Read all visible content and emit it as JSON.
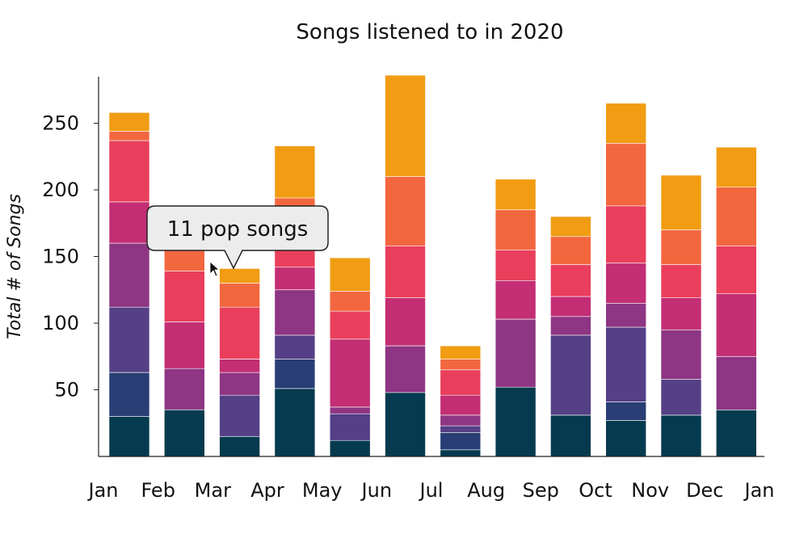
{
  "chart_data": {
    "type": "bar",
    "stacked": true,
    "title": "Songs listened to in 2020",
    "xlabel": "",
    "ylabel": "Total # of Songs",
    "ylim": [
      0,
      285
    ],
    "yticks": [
      50,
      100,
      150,
      200,
      250
    ],
    "x_tick_labels": [
      "Jan",
      "Feb",
      "Mar",
      "Apr",
      "May",
      "Jun",
      "Jul",
      "Aug",
      "Sep",
      "Oct",
      "Nov",
      "Dec",
      "Jan"
    ],
    "grid": false,
    "legend": "none",
    "categories": [
      "Jan",
      "Feb",
      "Mar",
      "Apr",
      "May",
      "Jun",
      "Jul",
      "Aug",
      "Sep",
      "Oct",
      "Nov",
      "Dec"
    ],
    "series": [
      {
        "color": "#063a4f",
        "values": [
          30,
          35,
          15,
          51,
          12,
          48,
          5,
          52,
          31,
          27,
          31,
          35
        ]
      },
      {
        "color": "#283e74",
        "values": [
          33,
          0,
          0,
          22,
          0,
          0,
          13,
          0,
          0,
          14,
          0,
          0
        ]
      },
      {
        "color": "#553f86",
        "values": [
          49,
          0,
          31,
          18,
          20,
          0,
          5,
          0,
          60,
          56,
          27,
          0
        ]
      },
      {
        "color": "#8e3583",
        "values": [
          48,
          31,
          17,
          34,
          5,
          35,
          8,
          51,
          14,
          18,
          37,
          40
        ]
      },
      {
        "color": "#c32e74",
        "values": [
          31,
          35,
          10,
          17,
          51,
          36,
          15,
          29,
          15,
          30,
          24,
          47
        ]
      },
      {
        "color": "#e93f5c",
        "values": [
          46,
          38,
          39,
          13,
          21,
          39,
          19,
          23,
          24,
          43,
          25,
          36
        ]
      },
      {
        "color": "#f3673f",
        "values": [
          7,
          27,
          18,
          39,
          15,
          52,
          8,
          30,
          21,
          47,
          26,
          44
        ]
      },
      {
        "color": "#f19c12",
        "values": [
          14,
          6,
          11,
          39,
          25,
          76,
          10,
          23,
          15,
          30,
          41,
          30
        ]
      }
    ],
    "annotation": {
      "text": "11 pop songs",
      "category": "Mar"
    }
  }
}
